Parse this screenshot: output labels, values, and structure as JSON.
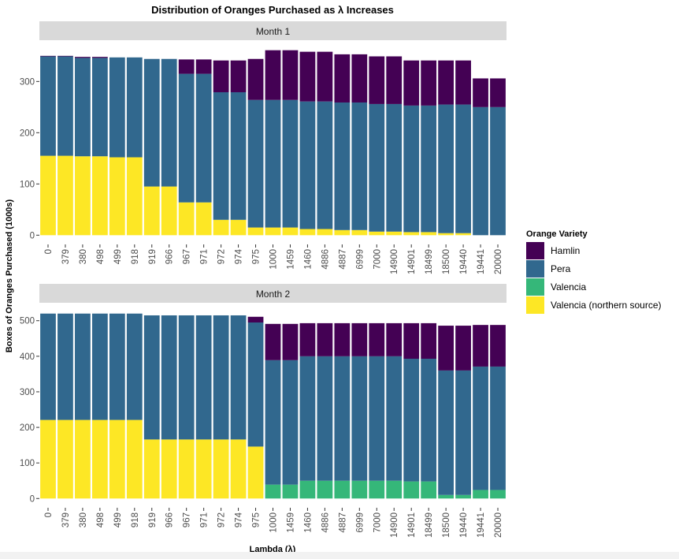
{
  "chart_data": {
    "type": "bar",
    "stacked": true,
    "title": "Distribution of Oranges Purchased as λ Increases",
    "xlabel": "Lambda (λ)",
    "ylabel": "Boxes of Oranges Purchased (1000s)",
    "grid": false,
    "legend": {
      "title": "Orange Variety",
      "placement": "right"
    },
    "series_names": [
      "Hamlin",
      "Pera",
      "Valencia",
      "Valencia (northern source)"
    ],
    "colors": {
      "Hamlin": "#440154",
      "Pera": "#31688e",
      "Valencia": "#35b779",
      "Valencia (northern source)": "#fde725"
    },
    "categories": [
      "0",
      "379",
      "380",
      "498",
      "499",
      "918",
      "919",
      "966",
      "967",
      "971",
      "972",
      "974",
      "975",
      "1000",
      "1459",
      "1460",
      "4886",
      "4887",
      "6999",
      "7000",
      "14900",
      "14901",
      "18499",
      "18500",
      "19440",
      "19441",
      "20000"
    ],
    "panels": [
      {
        "strip": "Month 1",
        "ylim": [
          -18,
          379
        ],
        "yticks": [
          0,
          100,
          200,
          300
        ],
        "series": [
          {
            "name": "Valencia (northern source)",
            "values": [
              155,
              155,
              154,
              154,
              152,
              152,
              95,
              95,
              64,
              64,
              30,
              30,
              15,
              15,
              15,
              12,
              12,
              10,
              10,
              7,
              7,
              6,
              6,
              4,
              4,
              0,
              0
            ]
          },
          {
            "name": "Valencia",
            "values": [
              0,
              0,
              0,
              0,
              0,
              0,
              0,
              0,
              0,
              0,
              0,
              0,
              0,
              0,
              0,
              0,
              0,
              0,
              0,
              0,
              0,
              0,
              0,
              0,
              0,
              0,
              0
            ]
          },
          {
            "name": "Pera",
            "values": [
              194,
              194,
              192,
              192,
              195,
              195,
              249,
              249,
              251,
              251,
              249,
              249,
              249,
              249,
              249,
              249,
              249,
              249,
              249,
              249,
              249,
              247,
              247,
              251,
              251,
              250,
              250
            ]
          },
          {
            "name": "Hamlin",
            "values": [
              1,
              1,
              2,
              2,
              0,
              0,
              0,
              0,
              28,
              28,
              62,
              62,
              80,
              97,
              97,
              97,
              97,
              94,
              94,
              93,
              93,
              88,
              88,
              86,
              86,
              56,
              56
            ]
          }
        ]
      },
      {
        "strip": "Month 2",
        "ylim": [
          -26,
          546
        ],
        "yticks": [
          0,
          100,
          200,
          300,
          400,
          500
        ],
        "series": [
          {
            "name": "Valencia (northern source)",
            "values": [
              221,
              221,
              221,
              221,
              221,
              221,
              166,
              166,
              166,
              166,
              166,
              166,
              146,
              0,
              0,
              0,
              0,
              0,
              0,
              0,
              0,
              0,
              0,
              0,
              0,
              0,
              0
            ]
          },
          {
            "name": "Valencia",
            "values": [
              0,
              0,
              0,
              0,
              0,
              0,
              0,
              0,
              0,
              0,
              0,
              0,
              0,
              39,
              39,
              50,
              50,
              50,
              50,
              50,
              50,
              48,
              48,
              10,
              10,
              24,
              24
            ]
          },
          {
            "name": "Pera",
            "values": [
              299,
              299,
              299,
              299,
              299,
              299,
              349,
              349,
              349,
              349,
              349,
              349,
              349,
              350,
              350,
              350,
              350,
              350,
              350,
              350,
              350,
              345,
              345,
              350,
              350,
              347,
              347
            ]
          },
          {
            "name": "Hamlin",
            "values": [
              0,
              0,
              0,
              0,
              0,
              0,
              0,
              0,
              0,
              0,
              0,
              0,
              16,
              102,
              102,
              93,
              93,
              93,
              93,
              93,
              93,
              100,
              100,
              126,
              126,
              117,
              117
            ]
          }
        ]
      }
    ]
  }
}
